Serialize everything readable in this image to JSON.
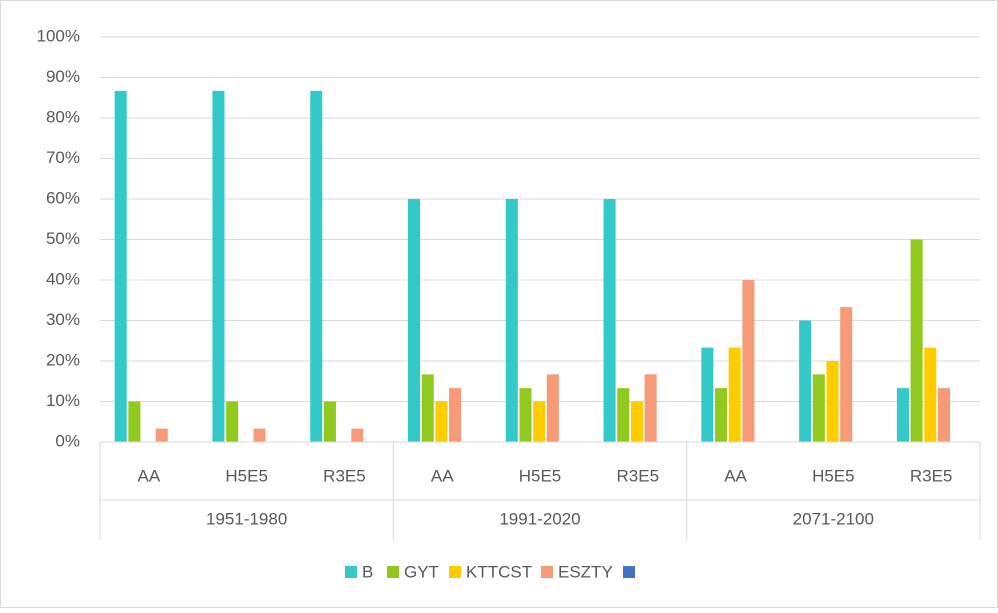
{
  "chart_data": {
    "type": "bar",
    "category_groups": [
      {
        "name": "1951-1980",
        "categories": [
          "AA",
          "H5E5",
          "R3E5"
        ]
      },
      {
        "name": "1991-2020",
        "categories": [
          "AA",
          "H5E5",
          "R3E5"
        ]
      },
      {
        "name": "2071-2100",
        "categories": [
          "AA",
          "H5E5",
          "R3E5"
        ]
      }
    ],
    "series": [
      {
        "name": "B",
        "color": "#33c9c9",
        "values": [
          86.7,
          86.7,
          86.7,
          60,
          60,
          60,
          23.3,
          30,
          13.3
        ]
      },
      {
        "name": "GYT",
        "color": "#92c91e",
        "values": [
          10,
          10,
          10,
          16.7,
          13.3,
          13.3,
          13.3,
          16.7,
          50
        ]
      },
      {
        "name": "KTTCST",
        "color": "#ffcc00",
        "values": [
          0,
          0,
          0,
          10,
          10,
          10,
          23.3,
          20,
          23.3
        ]
      },
      {
        "name": "ESZTY",
        "color": "#f79a78",
        "values": [
          3.3,
          3.3,
          3.3,
          13.3,
          16.7,
          16.7,
          40,
          33.3,
          13.3
        ]
      },
      {
        "name": null,
        "color": "#4472c4",
        "values": [
          null,
          null,
          null,
          null,
          null,
          null,
          null,
          null,
          null
        ]
      }
    ],
    "ylim": [
      0,
      100
    ],
    "yticks": [
      {
        "value": 0,
        "label": "0%"
      },
      {
        "value": 10,
        "label": "10%"
      },
      {
        "value": 20,
        "label": "20%"
      },
      {
        "value": 30,
        "label": "30%"
      },
      {
        "value": 40,
        "label": "40%"
      },
      {
        "value": 50,
        "label": "50%"
      },
      {
        "value": 60,
        "label": "60%"
      },
      {
        "value": 70,
        "label": "70%"
      },
      {
        "value": 80,
        "label": "80%"
      },
      {
        "value": 90,
        "label": "90%"
      },
      {
        "value": 100,
        "label": "100%"
      }
    ],
    "grid": true,
    "legend": "bottom"
  }
}
